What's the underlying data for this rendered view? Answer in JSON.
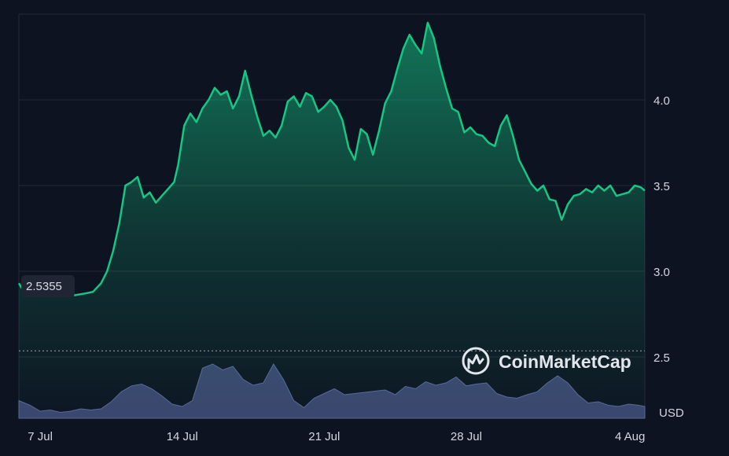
{
  "chart_data": {
    "type": "line",
    "title": "",
    "xlabel": "",
    "ylabel": "",
    "currency_label": "USD",
    "watermark": "CoinMarketCap",
    "start_value_label": "2.5355",
    "x_ticks": [
      "7 Jul",
      "14 Jul",
      "21 Jul",
      "28 Jul",
      "4 Aug"
    ],
    "y_ticks": [
      "2.5",
      "3.0",
      "3.5",
      "4.0"
    ],
    "ylim": [
      2.5,
      4.5
    ],
    "reference_line_value": 2.5355,
    "grid": true,
    "x_range_days": [
      5.95,
      36.8
    ],
    "series": [
      {
        "line_color": "#16c784",
        "x": [
          5.95,
          6.3,
          6.7,
          7.2,
          7.7,
          8.2,
          8.7,
          9.2,
          9.6,
          10.0,
          10.3,
          10.6,
          10.9,
          11.2,
          11.5,
          11.8,
          12.1,
          12.4,
          12.7,
          13.0,
          13.3,
          13.6,
          13.8,
          14.1,
          14.4,
          14.7,
          15.0,
          15.3,
          15.6,
          15.9,
          16.2,
          16.5,
          16.8,
          17.1,
          17.4,
          17.7,
          18.0,
          18.3,
          18.6,
          18.9,
          19.2,
          19.5,
          19.8,
          20.1,
          20.4,
          20.7,
          21.0,
          21.3,
          21.6,
          21.9,
          22.2,
          22.5,
          22.8,
          23.1,
          23.4,
          23.7,
          24.0,
          24.3,
          24.6,
          24.9,
          25.2,
          25.5,
          25.8,
          26.1,
          26.4,
          26.7,
          27.0,
          27.3,
          27.6,
          27.9,
          28.2,
          28.5,
          28.8,
          29.1,
          29.4,
          29.7,
          30.0,
          30.3,
          30.6,
          30.9,
          31.2,
          31.5,
          31.8,
          32.1,
          32.4,
          32.7,
          33.0,
          33.3,
          33.6,
          33.9,
          34.2,
          34.5,
          34.8,
          35.1,
          35.4,
          35.7,
          36.0,
          36.3,
          36.6,
          36.8
        ],
        "y": [
          2.93,
          2.86,
          2.93,
          2.91,
          2.89,
          2.91,
          2.86,
          2.87,
          2.88,
          2.93,
          3.0,
          3.12,
          3.28,
          3.5,
          3.52,
          3.55,
          3.43,
          3.46,
          3.4,
          3.44,
          3.48,
          3.52,
          3.62,
          3.85,
          3.92,
          3.87,
          3.95,
          4.0,
          4.07,
          4.03,
          4.05,
          3.95,
          4.02,
          4.17,
          4.03,
          3.9,
          3.79,
          3.82,
          3.78,
          3.85,
          3.99,
          4.02,
          3.96,
          4.04,
          4.02,
          3.93,
          3.96,
          4.0,
          3.96,
          3.88,
          3.72,
          3.65,
          3.83,
          3.8,
          3.68,
          3.82,
          3.98,
          4.05,
          4.18,
          4.3,
          4.38,
          4.32,
          4.27,
          4.45,
          4.36,
          4.2,
          4.07,
          3.95,
          3.93,
          3.81,
          3.84,
          3.8,
          3.79,
          3.75,
          3.73,
          3.85,
          3.91,
          3.79,
          3.65,
          3.58,
          3.51,
          3.47,
          3.5,
          3.42,
          3.41,
          3.3,
          3.39,
          3.44,
          3.45,
          3.48,
          3.46,
          3.5,
          3.47,
          3.5,
          3.44,
          3.45,
          3.46,
          3.5,
          3.49,
          3.47
        ]
      }
    ],
    "volume": {
      "color": "#4b5687",
      "x": [
        5.95,
        6.5,
        7.0,
        7.5,
        8.0,
        8.5,
        9.0,
        9.5,
        10.0,
        10.5,
        11.0,
        11.5,
        12.0,
        12.5,
        13.0,
        13.5,
        14.0,
        14.5,
        15.0,
        15.5,
        16.0,
        16.5,
        17.0,
        17.5,
        18.0,
        18.5,
        19.0,
        19.5,
        20.0,
        20.5,
        21.0,
        21.5,
        22.0,
        22.5,
        23.0,
        23.5,
        24.0,
        24.5,
        25.0,
        25.5,
        26.0,
        26.5,
        27.0,
        27.5,
        28.0,
        28.5,
        29.0,
        29.5,
        30.0,
        30.5,
        31.0,
        31.5,
        32.0,
        32.5,
        33.0,
        33.5,
        34.0,
        34.5,
        35.0,
        35.5,
        36.0,
        36.5,
        36.8
      ],
      "v": [
        0.3,
        0.22,
        0.12,
        0.14,
        0.1,
        0.12,
        0.16,
        0.14,
        0.16,
        0.28,
        0.45,
        0.55,
        0.58,
        0.5,
        0.38,
        0.24,
        0.2,
        0.3,
        0.85,
        0.92,
        0.82,
        0.88,
        0.66,
        0.56,
        0.6,
        0.92,
        0.65,
        0.3,
        0.18,
        0.34,
        0.42,
        0.5,
        0.4,
        0.42,
        0.44,
        0.46,
        0.48,
        0.4,
        0.54,
        0.5,
        0.62,
        0.56,
        0.6,
        0.7,
        0.55,
        0.58,
        0.6,
        0.42,
        0.36,
        0.34,
        0.4,
        0.45,
        0.6,
        0.72,
        0.6,
        0.4,
        0.26,
        0.28,
        0.22,
        0.2,
        0.24,
        0.22,
        0.2
      ]
    }
  }
}
